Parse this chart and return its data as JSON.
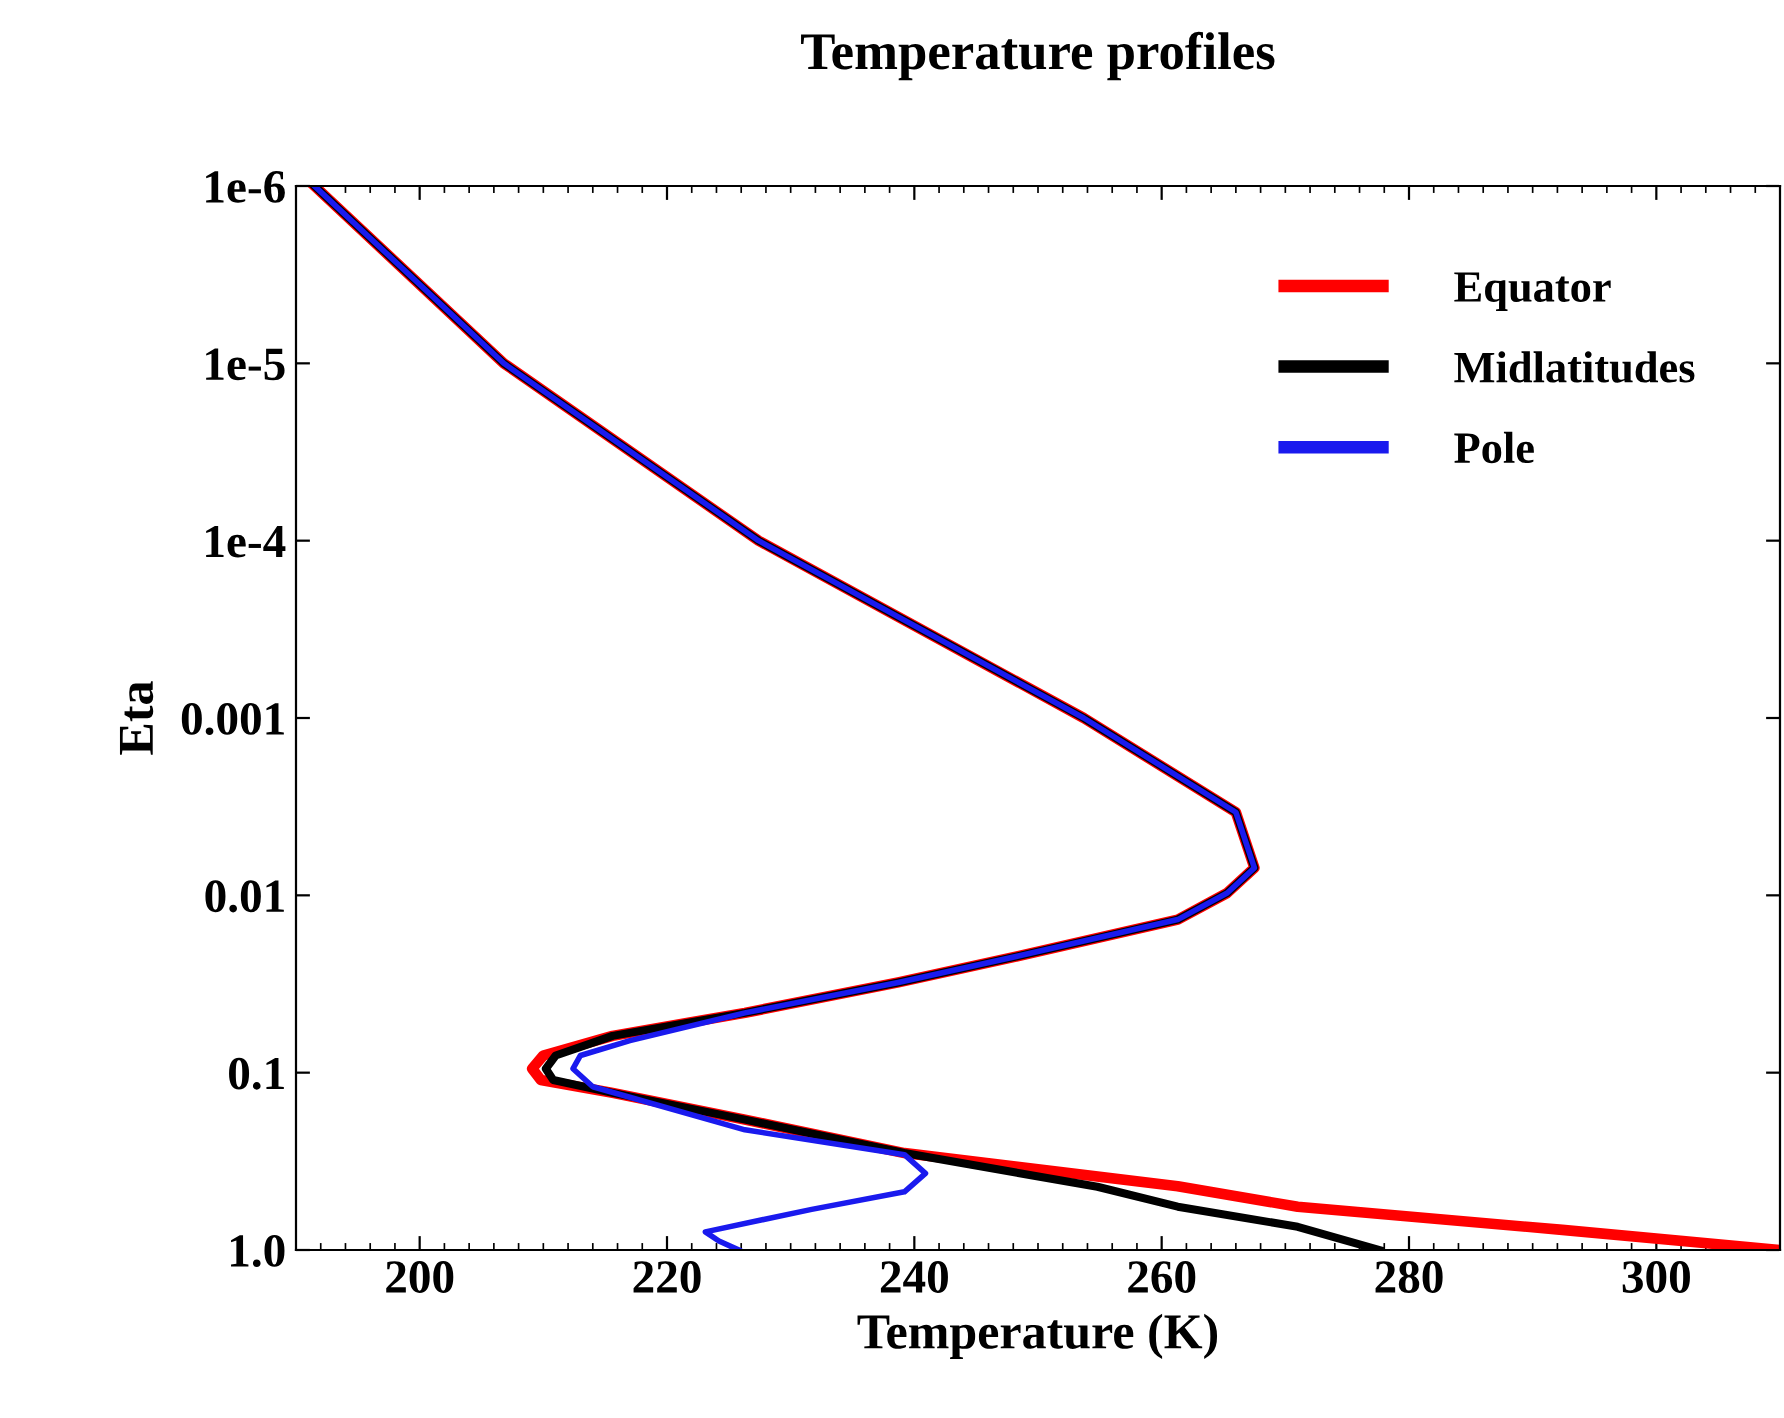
{
  "chart_data": {
    "type": "line",
    "title": "Temperature profiles",
    "xlabel": "Temperature (K)",
    "ylabel": "Eta",
    "log": "y",
    "xlim": [
      190,
      310
    ],
    "xticks": [
      200,
      220,
      240,
      260,
      280,
      300
    ],
    "ylim": [
      1.0,
      1e-06
    ],
    "yticks": [
      {
        "value": 1e-06,
        "label": "1e-6"
      },
      {
        "value": 1e-05,
        "label": "1e-5"
      },
      {
        "value": 0.0001,
        "label": "1e-4"
      },
      0.001,
      0.01,
      0.1,
      {
        "value": 1.0,
        "label": "1.0"
      }
    ],
    "grid": false,
    "legend": "top right",
    "marker": "none",
    "line_style": "solid",
    "series": [
      {
        "name": "Equator",
        "color": "#ff0000",
        "x": [
          191.5,
          206.8,
          227.4,
          253.7,
          266.0,
          267.5,
          265.3,
          261.3,
          248.4,
          238.7,
          226.3,
          215.6,
          210.0,
          209.1,
          209.8,
          215.6,
          226.3,
          239.2,
          261.3,
          271,
          292.4,
          310
        ],
        "values": [
          1e-06,
          1e-05,
          0.0001,
          0.001,
          0.0034,
          0.007,
          0.0097,
          0.0137,
          0.022,
          0.031,
          0.046,
          0.062,
          0.08,
          0.095,
          0.11,
          0.13,
          0.184,
          0.284,
          0.437,
          0.57,
          0.77,
          1.0
        ]
      },
      {
        "name": "Midlatitudes",
        "color": "#000000",
        "x": [
          191.5,
          206.8,
          227.4,
          253.7,
          266.0,
          267.5,
          265.3,
          261.3,
          248.4,
          238.7,
          226.3,
          215.6,
          211.0,
          210.2,
          210.8,
          215.6,
          226.3,
          239.2,
          254.8,
          261.3,
          271,
          277.6
        ],
        "values": [
          1e-06,
          1e-05,
          0.0001,
          0.001,
          0.0034,
          0.007,
          0.0097,
          0.0137,
          0.022,
          0.031,
          0.046,
          0.062,
          0.08,
          0.095,
          0.11,
          0.13,
          0.184,
          0.284,
          0.44,
          0.57,
          0.74,
          1.0
        ]
      },
      {
        "name": "Pole",
        "color": "#1a1aee",
        "x": [
          191.5,
          206.8,
          227.4,
          253.7,
          266.0,
          267.5,
          265.3,
          261.3,
          248.4,
          238.7,
          226.3,
          217.0,
          213.0,
          212.4,
          214.0,
          226.3,
          239.2,
          240.9,
          239.2,
          231.7,
          223.1,
          224.2,
          225.8
        ],
        "values": [
          1e-06,
          1e-05,
          0.0001,
          0.001,
          0.0034,
          0.007,
          0.0097,
          0.0137,
          0.022,
          0.031,
          0.046,
          0.066,
          0.08,
          0.095,
          0.12,
          0.21,
          0.29,
          0.37,
          0.47,
          0.59,
          0.79,
          0.89,
          1.0
        ]
      }
    ]
  }
}
